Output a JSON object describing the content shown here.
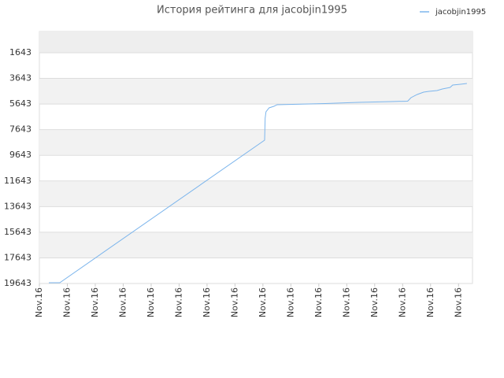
{
  "chart_data": {
    "type": "line",
    "title": "История рейтинга для jacobjin1995",
    "x": [
      0.34,
      0.73,
      8.06,
      8.08,
      8.11,
      8.22,
      8.39,
      8.51,
      9.07,
      10.23,
      11.41,
      12.59,
      13.18,
      13.3,
      13.52,
      13.75,
      13.94,
      14.23,
      14.42,
      14.7,
      14.79,
      15.07,
      15.3
    ],
    "series": [
      {
        "name": "jacobjin1995",
        "color": "#7cb5ec",
        "values": [
          19580,
          19580,
          8461,
          6741,
          6250,
          5943,
          5820,
          5697,
          5666,
          5605,
          5513,
          5451,
          5420,
          5144,
          4899,
          4714,
          4653,
          4591,
          4468,
          4346,
          4162,
          4100,
          4038
        ]
      }
    ],
    "xlim": [
      0,
      15.5
    ],
    "xticks": [
      {
        "value": 0,
        "label": "Nov.16"
      },
      {
        "value": 1,
        "label": "Nov.16"
      },
      {
        "value": 2,
        "label": "Nov.16"
      },
      {
        "value": 3,
        "label": "Nov.16"
      },
      {
        "value": 4,
        "label": "Nov.16"
      },
      {
        "value": 5,
        "label": "Nov.16"
      },
      {
        "value": 6,
        "label": "Nov.16"
      },
      {
        "value": 7,
        "label": "Nov.16"
      },
      {
        "value": 8,
        "label": "Nov.16"
      },
      {
        "value": 9,
        "label": "Nov.16"
      },
      {
        "value": 10,
        "label": "Nov.16"
      },
      {
        "value": 11,
        "label": "Nov.16"
      },
      {
        "value": 12,
        "label": "Nov.16"
      },
      {
        "value": 13,
        "label": "Nov.16"
      },
      {
        "value": 14,
        "label": "Nov.16"
      },
      {
        "value": 15,
        "label": "Nov.16"
      }
    ],
    "ylim": [
      19643,
      -15
    ],
    "yticks": [
      1643,
      3643,
      5643,
      7643,
      9643,
      11643,
      13643,
      15643,
      17643,
      19643
    ],
    "grid": true,
    "legend": "top-right"
  }
}
